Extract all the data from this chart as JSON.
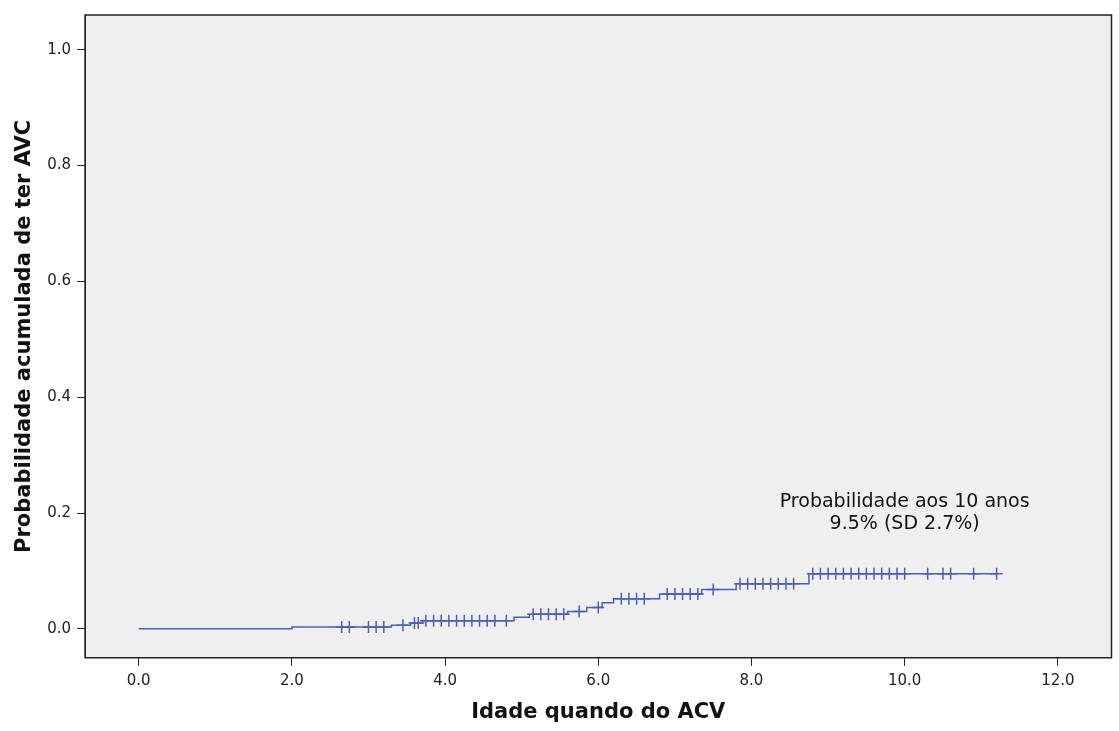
{
  "chart_data": {
    "type": "step",
    "xlabel": "Idade quando do ACV",
    "ylabel": "Probabilidade acumulada de ter AVC",
    "annotations": [
      "Probabilidade aos 10 anos",
      "9.5% (SD 2.7%)"
    ],
    "xlim": [
      -0.7,
      12.7
    ],
    "ylim": [
      -0.05,
      1.06
    ],
    "xticks": [
      {
        "value": 0,
        "label": "0.0"
      },
      {
        "value": 2,
        "label": "2.0"
      },
      {
        "value": 4,
        "label": "4.0"
      },
      {
        "value": 6,
        "label": "6.0"
      },
      {
        "value": 8,
        "label": "8.0"
      },
      {
        "value": 10,
        "label": "10.0"
      },
      {
        "value": 12,
        "label": "12.0"
      }
    ],
    "yticks": [
      {
        "value": 0,
        "label": "0.0"
      },
      {
        "value": 0.2,
        "label": "0.2"
      },
      {
        "value": 0.4,
        "label": "0.4"
      },
      {
        "value": 0.6,
        "label": "0.6"
      },
      {
        "value": 0.8,
        "label": "0.8"
      },
      {
        "value": 1,
        "label": "1.0"
      }
    ],
    "grid": false,
    "legend": false,
    "series": [
      {
        "type": "step",
        "color": "#4a5fb5",
        "marker": "none",
        "x": [
          0,
          2,
          3.3,
          3.55,
          3.7,
          4.9,
          5.1,
          5.6,
          5.85,
          6.05,
          6.2,
          6.8,
          7.35,
          7.8,
          8.75,
          11.2
        ],
        "values": [
          0,
          0.003,
          0.006,
          0.01,
          0.014,
          0.02,
          0.025,
          0.03,
          0.037,
          0.045,
          0.052,
          0.06,
          0.068,
          0.078,
          0.095,
          0.095
        ]
      },
      {
        "type": "scatter",
        "color": "#4a5fb5",
        "marker": "cross",
        "x": [
          2.65,
          2.75,
          3.0,
          3.1,
          3.2,
          3.45,
          3.6,
          3.65,
          3.75,
          3.85,
          3.95,
          4.05,
          4.15,
          4.25,
          4.35,
          4.45,
          4.55,
          4.65,
          4.8,
          5.15,
          5.25,
          5.35,
          5.45,
          5.55,
          5.75,
          6.0,
          6.3,
          6.4,
          6.5,
          6.6,
          6.9,
          7.0,
          7.1,
          7.2,
          7.3,
          7.5,
          7.85,
          7.95,
          8.05,
          8.15,
          8.25,
          8.35,
          8.45,
          8.55,
          8.8,
          8.9,
          9.0,
          9.1,
          9.2,
          9.3,
          9.4,
          9.5,
          9.6,
          9.7,
          9.8,
          9.9,
          10.0,
          10.3,
          10.5,
          10.6,
          10.9,
          11.2
        ],
        "values": [
          0.003,
          0.003,
          0.003,
          0.003,
          0.003,
          0.006,
          0.01,
          0.01,
          0.014,
          0.014,
          0.014,
          0.014,
          0.014,
          0.014,
          0.014,
          0.014,
          0.014,
          0.014,
          0.014,
          0.025,
          0.025,
          0.025,
          0.025,
          0.025,
          0.03,
          0.037,
          0.052,
          0.052,
          0.052,
          0.052,
          0.06,
          0.06,
          0.06,
          0.06,
          0.06,
          0.068,
          0.078,
          0.078,
          0.078,
          0.078,
          0.078,
          0.078,
          0.078,
          0.078,
          0.095,
          0.095,
          0.095,
          0.095,
          0.095,
          0.095,
          0.095,
          0.095,
          0.095,
          0.095,
          0.095,
          0.095,
          0.095,
          0.095,
          0.095,
          0.095,
          0.095,
          0.095
        ]
      }
    ]
  }
}
